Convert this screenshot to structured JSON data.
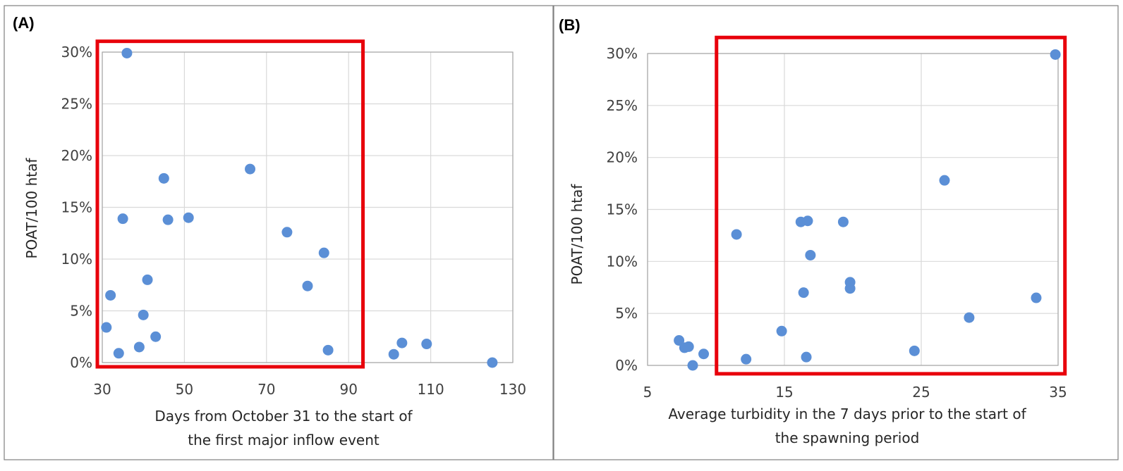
{
  "chart_data": [
    {
      "type": "scatter",
      "panel_label": "(A)",
      "title": "",
      "xlabel_lines": [
        "Days from October 31 to the start of",
        "the first major inflow event"
      ],
      "ylabel": "POAT/100 htaf",
      "xlim": [
        30,
        130
      ],
      "ylim": [
        0,
        0.3
      ],
      "xticks": [
        "30",
        "50",
        "70",
        "90",
        "110",
        "130"
      ],
      "yticks": [
        "0%",
        "5%",
        "10%",
        "15%",
        "20%",
        "25%",
        "30%"
      ],
      "grid": true,
      "highlight_box": {
        "x": [
          30,
          93.5
        ],
        "y": [
          0,
          0.305
        ]
      },
      "points": [
        {
          "x": 36,
          "y": 0.299
        },
        {
          "x": 45,
          "y": 0.178
        },
        {
          "x": 66,
          "y": 0.187
        },
        {
          "x": 35,
          "y": 0.139
        },
        {
          "x": 46,
          "y": 0.138
        },
        {
          "x": 51,
          "y": 0.14
        },
        {
          "x": 75,
          "y": 0.126
        },
        {
          "x": 84,
          "y": 0.106
        },
        {
          "x": 41,
          "y": 0.08
        },
        {
          "x": 80,
          "y": 0.074
        },
        {
          "x": 32,
          "y": 0.065
        },
        {
          "x": 40,
          "y": 0.046
        },
        {
          "x": 31,
          "y": 0.034
        },
        {
          "x": 43,
          "y": 0.025
        },
        {
          "x": 39,
          "y": 0.015
        },
        {
          "x": 34,
          "y": 0.009
        },
        {
          "x": 85,
          "y": 0.012
        },
        {
          "x": 101,
          "y": 0.008
        },
        {
          "x": 103,
          "y": 0.019
        },
        {
          "x": 109,
          "y": 0.018
        },
        {
          "x": 125,
          "y": 0.0
        }
      ]
    },
    {
      "type": "scatter",
      "panel_label": "(B)",
      "title": "",
      "xlabel_lines": [
        "Average turbidity in the 7 days prior to the start of",
        "the spawning period"
      ],
      "ylabel": "POAT/100 htaf",
      "xlim": [
        5,
        35
      ],
      "ylim": [
        0,
        0.3
      ],
      "xticks": [
        "5",
        "15",
        "25",
        "35"
      ],
      "yticks": [
        "0%",
        "5%",
        "10%",
        "15%",
        "20%",
        "25%",
        "30%"
      ],
      "grid": true,
      "highlight_box": {
        "x": [
          10.4,
          35.5
        ],
        "y": [
          -0.004,
          0.31
        ]
      },
      "points": [
        {
          "x": 34.8,
          "y": 0.299
        },
        {
          "x": 26.7,
          "y": 0.178
        },
        {
          "x": 11.5,
          "y": 0.126
        },
        {
          "x": 16.2,
          "y": 0.138
        },
        {
          "x": 16.7,
          "y": 0.139
        },
        {
          "x": 19.3,
          "y": 0.138
        },
        {
          "x": 16.9,
          "y": 0.106
        },
        {
          "x": 19.8,
          "y": 0.08
        },
        {
          "x": 19.8,
          "y": 0.074
        },
        {
          "x": 16.4,
          "y": 0.07
        },
        {
          "x": 33.4,
          "y": 0.065
        },
        {
          "x": 28.5,
          "y": 0.046
        },
        {
          "x": 14.8,
          "y": 0.033
        },
        {
          "x": 24.5,
          "y": 0.014
        },
        {
          "x": 7.3,
          "y": 0.024
        },
        {
          "x": 7.7,
          "y": 0.017
        },
        {
          "x": 8.0,
          "y": 0.018
        },
        {
          "x": 9.1,
          "y": 0.011
        },
        {
          "x": 12.2,
          "y": 0.006
        },
        {
          "x": 16.6,
          "y": 0.008
        },
        {
          "x": 8.3,
          "y": 0.0
        }
      ]
    }
  ]
}
